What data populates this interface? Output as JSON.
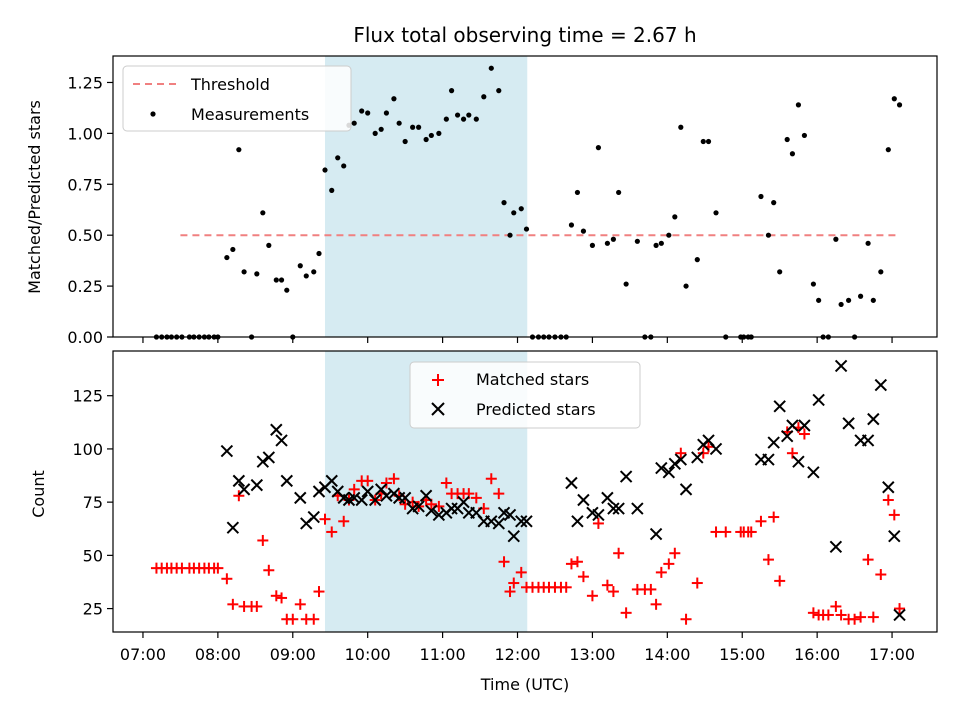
{
  "chart_data": {
    "type": "scatter",
    "title": "Flux total observing time = 2.67 h",
    "xlabel": "Time (UTC)",
    "xlim": [
      6.6,
      17.6
    ],
    "x_ticks": [
      {
        "value": 7,
        "label": "07:00"
      },
      {
        "value": 8,
        "label": "08:00"
      },
      {
        "value": 9,
        "label": "09:00"
      },
      {
        "value": 10,
        "label": "10:00"
      },
      {
        "value": 11,
        "label": "11:00"
      },
      {
        "value": 12,
        "label": "12:00"
      },
      {
        "value": 13,
        "label": "13:00"
      },
      {
        "value": 14,
        "label": "14:00"
      },
      {
        "value": 15,
        "label": "15:00"
      },
      {
        "value": 16,
        "label": "16:00"
      },
      {
        "value": 17,
        "label": "17:00"
      }
    ],
    "shaded_region": {
      "start": 9.43,
      "end": 12.13,
      "color": "#add8e6"
    },
    "colors": {
      "threshold": "#f08080",
      "measurement": "#000000",
      "matched": "#ff0000",
      "predicted": "#000000"
    },
    "top": {
      "ylabel": "Matched/Predicted stars",
      "ylim": [
        0,
        1.38
      ],
      "y_ticks": [
        0,
        0.25,
        0.5,
        0.75,
        1.0,
        1.25
      ],
      "y_tick_labels": [
        "0.00",
        "0.25",
        "0.50",
        "0.75",
        "1.00",
        "1.25"
      ],
      "legend": [
        "Threshold",
        "Measurements"
      ],
      "threshold": {
        "value": 0.5,
        "x_start": 7.5,
        "x_end": 17.1
      },
      "measurements": [
        [
          7.18,
          0
        ],
        [
          7.25,
          0
        ],
        [
          7.32,
          0
        ],
        [
          7.38,
          0
        ],
        [
          7.45,
          0
        ],
        [
          7.52,
          0
        ],
        [
          7.62,
          0
        ],
        [
          7.68,
          0
        ],
        [
          7.75,
          0
        ],
        [
          7.82,
          0
        ],
        [
          7.88,
          0
        ],
        [
          7.95,
          0
        ],
        [
          8.0,
          0
        ],
        [
          8.12,
          0.39
        ],
        [
          8.2,
          0.43
        ],
        [
          8.28,
          0.92
        ],
        [
          8.35,
          0.32
        ],
        [
          8.45,
          0
        ],
        [
          8.52,
          0.31
        ],
        [
          8.6,
          0.61
        ],
        [
          8.68,
          0.45
        ],
        [
          8.78,
          0.28
        ],
        [
          8.85,
          0.28
        ],
        [
          8.92,
          0.23
        ],
        [
          9.0,
          0
        ],
        [
          9.1,
          0.35
        ],
        [
          9.18,
          0.3
        ],
        [
          9.28,
          0.32
        ],
        [
          9.35,
          0.41
        ],
        [
          9.43,
          0.82
        ],
        [
          9.52,
          0.72
        ],
        [
          9.6,
          0.88
        ],
        [
          9.68,
          0.84
        ],
        [
          9.75,
          1.04
        ],
        [
          9.82,
          1.05
        ],
        [
          9.92,
          1.11
        ],
        [
          10.0,
          1.1
        ],
        [
          10.1,
          1.0
        ],
        [
          10.18,
          1.02
        ],
        [
          10.25,
          1.1
        ],
        [
          10.35,
          1.17
        ],
        [
          10.42,
          1.05
        ],
        [
          10.5,
          0.96
        ],
        [
          10.6,
          1.03
        ],
        [
          10.68,
          1.03
        ],
        [
          10.78,
          0.97
        ],
        [
          10.85,
          0.99
        ],
        [
          10.95,
          1.0
        ],
        [
          11.05,
          1.07
        ],
        [
          11.12,
          1.21
        ],
        [
          11.2,
          1.09
        ],
        [
          11.28,
          1.07
        ],
        [
          11.35,
          1.09
        ],
        [
          11.45,
          1.07
        ],
        [
          11.55,
          1.18
        ],
        [
          11.65,
          1.32
        ],
        [
          11.75,
          1.21
        ],
        [
          11.82,
          0.66
        ],
        [
          11.9,
          0.5
        ],
        [
          11.95,
          0.61
        ],
        [
          12.05,
          0.63
        ],
        [
          12.12,
          0.53
        ],
        [
          12.2,
          0
        ],
        [
          12.28,
          0
        ],
        [
          12.35,
          0
        ],
        [
          12.42,
          0
        ],
        [
          12.5,
          0
        ],
        [
          12.58,
          0
        ],
        [
          12.65,
          0
        ],
        [
          12.72,
          0.55
        ],
        [
          12.8,
          0.71
        ],
        [
          12.88,
          0.52
        ],
        [
          13.0,
          0.45
        ],
        [
          13.08,
          0.93
        ],
        [
          13.2,
          0.46
        ],
        [
          13.28,
          0.48
        ],
        [
          13.35,
          0.71
        ],
        [
          13.45,
          0.26
        ],
        [
          13.6,
          0.47
        ],
        [
          13.7,
          0
        ],
        [
          13.78,
          0
        ],
        [
          13.85,
          0.45
        ],
        [
          13.92,
          0.46
        ],
        [
          14.02,
          0.5
        ],
        [
          14.1,
          0.59
        ],
        [
          14.18,
          1.03
        ],
        [
          14.25,
          0.25
        ],
        [
          14.4,
          0.38
        ],
        [
          14.48,
          0.96
        ],
        [
          14.55,
          0.96
        ],
        [
          14.65,
          0.61
        ],
        [
          14.78,
          0
        ],
        [
          14.98,
          0
        ],
        [
          15.02,
          0
        ],
        [
          15.08,
          0
        ],
        [
          15.12,
          0
        ],
        [
          15.25,
          0.69
        ],
        [
          15.35,
          0.5
        ],
        [
          15.42,
          0.66
        ],
        [
          15.5,
          0.32
        ],
        [
          15.6,
          0.97
        ],
        [
          15.67,
          0.9
        ],
        [
          15.75,
          1.14
        ],
        [
          15.83,
          0.99
        ],
        [
          15.95,
          0.26
        ],
        [
          16.02,
          0.18
        ],
        [
          16.08,
          0
        ],
        [
          16.15,
          0
        ],
        [
          16.25,
          0.48
        ],
        [
          16.32,
          0.16
        ],
        [
          16.42,
          0.18
        ],
        [
          16.5,
          0
        ],
        [
          16.58,
          0.2
        ],
        [
          16.68,
          0.46
        ],
        [
          16.75,
          0.18
        ],
        [
          16.85,
          0.32
        ],
        [
          16.95,
          0.92
        ],
        [
          17.03,
          1.17
        ],
        [
          17.1,
          1.14
        ]
      ]
    },
    "bottom": {
      "ylabel": "Count",
      "ylim": [
        14,
        146
      ],
      "y_ticks": [
        25,
        50,
        75,
        100,
        125
      ],
      "y_tick_labels": [
        "25",
        "50",
        "75",
        "100",
        "125"
      ],
      "legend": [
        "Matched stars",
        "Predicted stars"
      ],
      "matched": [
        [
          7.18,
          44
        ],
        [
          7.25,
          44
        ],
        [
          7.32,
          44
        ],
        [
          7.38,
          44
        ],
        [
          7.45,
          44
        ],
        [
          7.52,
          44
        ],
        [
          7.62,
          44
        ],
        [
          7.68,
          44
        ],
        [
          7.75,
          44
        ],
        [
          7.82,
          44
        ],
        [
          7.88,
          44
        ],
        [
          7.95,
          44
        ],
        [
          8.0,
          44
        ],
        [
          8.12,
          39
        ],
        [
          8.2,
          27
        ],
        [
          8.28,
          78
        ],
        [
          8.35,
          26
        ],
        [
          8.45,
          26
        ],
        [
          8.52,
          26
        ],
        [
          8.6,
          57
        ],
        [
          8.68,
          43
        ],
        [
          8.78,
          31
        ],
        [
          8.85,
          30
        ],
        [
          8.92,
          20
        ],
        [
          9.0,
          20
        ],
        [
          9.1,
          27
        ],
        [
          9.18,
          20
        ],
        [
          9.28,
          20
        ],
        [
          9.35,
          33
        ],
        [
          9.43,
          67
        ],
        [
          9.52,
          61
        ],
        [
          9.6,
          78
        ],
        [
          9.68,
          66
        ],
        [
          9.75,
          76
        ],
        [
          9.82,
          81
        ],
        [
          9.92,
          85
        ],
        [
          10.0,
          85
        ],
        [
          10.1,
          76
        ],
        [
          10.18,
          79
        ],
        [
          10.25,
          84
        ],
        [
          10.35,
          86
        ],
        [
          10.42,
          78
        ],
        [
          10.5,
          74
        ],
        [
          10.6,
          75
        ],
        [
          10.68,
          73
        ],
        [
          10.78,
          76
        ],
        [
          10.85,
          74
        ],
        [
          10.95,
          73
        ],
        [
          11.05,
          84
        ],
        [
          11.12,
          79
        ],
        [
          11.2,
          79
        ],
        [
          11.28,
          79
        ],
        [
          11.35,
          79
        ],
        [
          11.45,
          77
        ],
        [
          11.55,
          72
        ],
        [
          11.65,
          86
        ],
        [
          11.75,
          79
        ],
        [
          11.82,
          47
        ],
        [
          11.9,
          33
        ],
        [
          11.95,
          37
        ],
        [
          12.05,
          42
        ],
        [
          12.12,
          35
        ],
        [
          12.2,
          35
        ],
        [
          12.28,
          35
        ],
        [
          12.35,
          35
        ],
        [
          12.42,
          35
        ],
        [
          12.5,
          35
        ],
        [
          12.58,
          35
        ],
        [
          12.65,
          35
        ],
        [
          12.72,
          46
        ],
        [
          12.8,
          47
        ],
        [
          12.88,
          40
        ],
        [
          13.0,
          31
        ],
        [
          13.08,
          65
        ],
        [
          13.2,
          36
        ],
        [
          13.28,
          33
        ],
        [
          13.35,
          51
        ],
        [
          13.45,
          23
        ],
        [
          13.6,
          34
        ],
        [
          13.7,
          34
        ],
        [
          13.78,
          34
        ],
        [
          13.85,
          27
        ],
        [
          13.92,
          42
        ],
        [
          14.02,
          46
        ],
        [
          14.1,
          51
        ],
        [
          14.18,
          98
        ],
        [
          14.25,
          20
        ],
        [
          14.4,
          37
        ],
        [
          14.48,
          98
        ],
        [
          14.55,
          101
        ],
        [
          14.65,
          61
        ],
        [
          14.78,
          61
        ],
        [
          14.98,
          61
        ],
        [
          15.02,
          61
        ],
        [
          15.08,
          61
        ],
        [
          15.12,
          61
        ],
        [
          15.25,
          66
        ],
        [
          15.35,
          48
        ],
        [
          15.42,
          68
        ],
        [
          15.5,
          38
        ],
        [
          15.6,
          108
        ],
        [
          15.67,
          98
        ],
        [
          15.75,
          110
        ],
        [
          15.83,
          107
        ],
        [
          15.95,
          23
        ],
        [
          16.02,
          22
        ],
        [
          16.08,
          22
        ],
        [
          16.15,
          22
        ],
        [
          16.25,
          26
        ],
        [
          16.32,
          22
        ],
        [
          16.42,
          20
        ],
        [
          16.5,
          20
        ],
        [
          16.58,
          21
        ],
        [
          16.68,
          48
        ],
        [
          16.75,
          21
        ],
        [
          16.85,
          41
        ],
        [
          16.95,
          76
        ],
        [
          17.03,
          69
        ],
        [
          17.1,
          25
        ]
      ],
      "predicted": [
        [
          8.12,
          99
        ],
        [
          8.2,
          63
        ],
        [
          8.28,
          85
        ],
        [
          8.35,
          81
        ],
        [
          8.52,
          83
        ],
        [
          8.6,
          94
        ],
        [
          8.68,
          96
        ],
        [
          8.78,
          109
        ],
        [
          8.85,
          104
        ],
        [
          8.92,
          85
        ],
        [
          9.1,
          77
        ],
        [
          9.18,
          65
        ],
        [
          9.28,
          68
        ],
        [
          9.35,
          80
        ],
        [
          9.43,
          82
        ],
        [
          9.52,
          85
        ],
        [
          9.6,
          80
        ],
        [
          9.68,
          77
        ],
        [
          9.75,
          76
        ],
        [
          9.82,
          77
        ],
        [
          9.92,
          76
        ],
        [
          10.0,
          80
        ],
        [
          10.1,
          76
        ],
        [
          10.18,
          81
        ],
        [
          10.25,
          78
        ],
        [
          10.35,
          79
        ],
        [
          10.42,
          77
        ],
        [
          10.5,
          77
        ],
        [
          10.6,
          72
        ],
        [
          10.68,
          73
        ],
        [
          10.78,
          78
        ],
        [
          10.85,
          71
        ],
        [
          10.95,
          69
        ],
        [
          11.05,
          70
        ],
        [
          11.12,
          72
        ],
        [
          11.2,
          72
        ],
        [
          11.28,
          75
        ],
        [
          11.35,
          70
        ],
        [
          11.45,
          70
        ],
        [
          11.55,
          66
        ],
        [
          11.65,
          66
        ],
        [
          11.75,
          65
        ],
        [
          11.82,
          70
        ],
        [
          11.9,
          69
        ],
        [
          11.95,
          59
        ],
        [
          12.05,
          66
        ],
        [
          12.12,
          66
        ],
        [
          12.72,
          84
        ],
        [
          12.8,
          66
        ],
        [
          12.88,
          76
        ],
        [
          13.0,
          70
        ],
        [
          13.08,
          69
        ],
        [
          13.2,
          77
        ],
        [
          13.28,
          72
        ],
        [
          13.35,
          72
        ],
        [
          13.45,
          87
        ],
        [
          13.6,
          72
        ],
        [
          13.85,
          60
        ],
        [
          13.92,
          91
        ],
        [
          14.02,
          89
        ],
        [
          14.1,
          93
        ],
        [
          14.18,
          95
        ],
        [
          14.25,
          81
        ],
        [
          14.4,
          96
        ],
        [
          14.48,
          102
        ],
        [
          14.55,
          104
        ],
        [
          14.65,
          100
        ],
        [
          15.25,
          95
        ],
        [
          15.35,
          95
        ],
        [
          15.42,
          103
        ],
        [
          15.5,
          120
        ],
        [
          15.6,
          106
        ],
        [
          15.67,
          111
        ],
        [
          15.75,
          94
        ],
        [
          15.83,
          111
        ],
        [
          15.95,
          89
        ],
        [
          16.02,
          123
        ],
        [
          16.25,
          54
        ],
        [
          16.32,
          139
        ],
        [
          16.42,
          112
        ],
        [
          16.58,
          104
        ],
        [
          16.68,
          104
        ],
        [
          16.75,
          114
        ],
        [
          16.85,
          130
        ],
        [
          16.95,
          82
        ],
        [
          17.03,
          59
        ],
        [
          17.1,
          22
        ]
      ]
    }
  }
}
